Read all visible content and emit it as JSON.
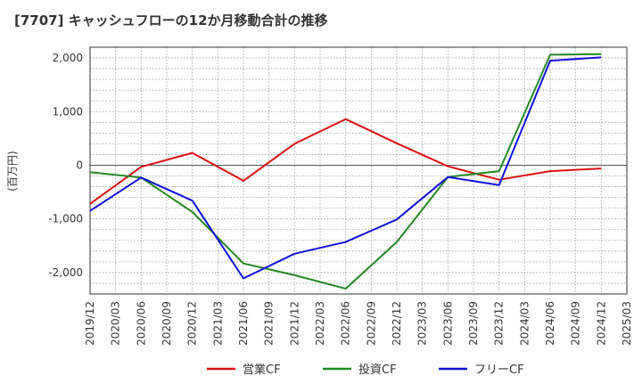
{
  "chart_data": {
    "type": "line",
    "title": "[7707]  キャッシュフローの12か月移動合計の推移",
    "ylabel": "(百万円)",
    "xlabel": "",
    "ylim": [
      -2400,
      2200
    ],
    "yticks": [
      2000,
      1000,
      0,
      -1000,
      -2000
    ],
    "ytick_labels": [
      "2,000",
      "1,000",
      "0",
      "-1,000",
      "-2,000"
    ],
    "x_tick_labels": [
      "2019/12",
      "2020/03",
      "2020/06",
      "2020/09",
      "2020/12",
      "2021/03",
      "2021/06",
      "2021/09",
      "2021/12",
      "2022/03",
      "2022/06",
      "2022/09",
      "2022/12",
      "2023/03",
      "2023/06",
      "2023/09",
      "2023/12",
      "2024/03",
      "2024/06",
      "2024/09",
      "2024/12",
      "2025/03"
    ],
    "grid": true,
    "legend_position": "bottom",
    "series": [
      {
        "name": "営業CF",
        "color": "#dd1111",
        "x": [
          "2019/12",
          "2020/06",
          "2020/12",
          "2021/06",
          "2021/12",
          "2022/06",
          "2022/12",
          "2023/06",
          "2023/12",
          "2024/06",
          "2024/12"
        ],
        "values": [
          -720,
          -30,
          230,
          -290,
          400,
          860,
          410,
          -20,
          -270,
          -110,
          -60
        ]
      },
      {
        "name": "投資CF",
        "color": "#228822",
        "x": [
          "2019/12",
          "2020/06",
          "2020/12",
          "2021/06",
          "2021/12",
          "2022/06",
          "2022/12",
          "2023/06",
          "2023/12",
          "2024/06",
          "2024/12"
        ],
        "values": [
          -130,
          -230,
          -870,
          -1830,
          -2050,
          -2300,
          -1430,
          -220,
          -110,
          2060,
          2070
        ]
      },
      {
        "name": "フリーCF",
        "color": "#1111dd",
        "x": [
          "2019/12",
          "2020/06",
          "2020/12",
          "2021/06",
          "2021/12",
          "2022/06",
          "2022/12",
          "2023/06",
          "2023/12",
          "2024/06",
          "2024/12"
        ],
        "values": [
          -850,
          -230,
          -660,
          -2110,
          -1650,
          -1430,
          -1010,
          -220,
          -370,
          1950,
          2010
        ]
      }
    ]
  }
}
